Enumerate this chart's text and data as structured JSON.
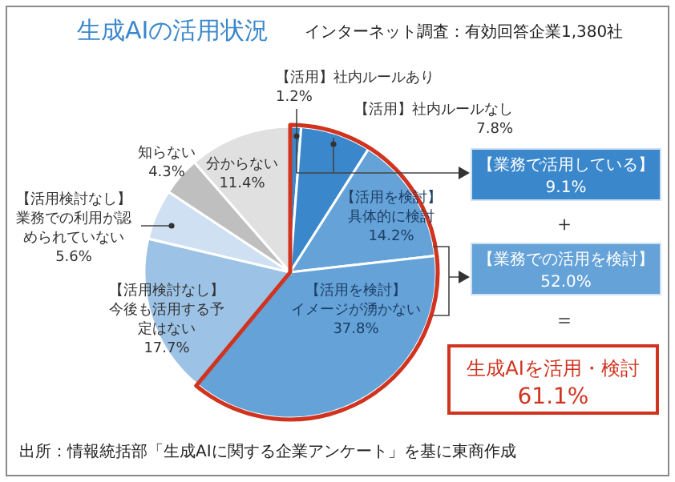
{
  "chart_data": {
    "type": "pie",
    "title": "生成AIの活用状況",
    "subtitle": "インターネット調査：有効回答企業1,380社",
    "categories": [
      "【活用】社内ルールあり",
      "【活用】社内ルールなし",
      "【活用を検討】具体的に検討",
      "【活用を検討】イメージが湧かない",
      "【活用検討なし】今後も活用する予定はない",
      "【活用検討なし】業務での利用が認められていない",
      "知らない",
      "分からない"
    ],
    "values": [
      1.2,
      7.8,
      14.2,
      37.8,
      17.7,
      5.6,
      4.3,
      11.4
    ],
    "value_labels": [
      "1.2%",
      "7.8%",
      "14.2%",
      "37.8%",
      "17.7%",
      "5.6%",
      "4.3%",
      "11.4%"
    ],
    "colors": [
      "#3a87cc",
      "#3a87cc",
      "#64a2d8",
      "#64a2d8",
      "#9cc3e6",
      "#cfe0f3",
      "#bfbfbf",
      "#e0e0e0"
    ],
    "annotations": [
      "【業務で活用している】",
      "9.1%",
      "＋",
      "【業務での活用を検討】",
      "52.0%",
      "＝",
      "生成AIを活用・検討",
      "61.1%",
      "出所：情報統括部「生成AIに関する企業アンケート」を基に東商作成"
    ]
  }
}
